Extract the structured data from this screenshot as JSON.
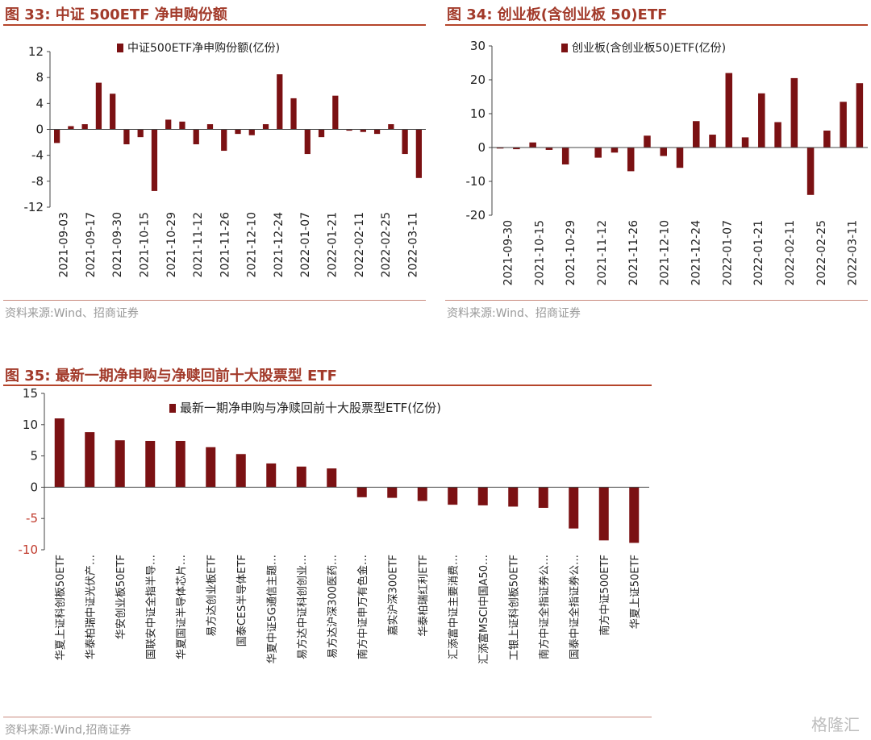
{
  "fig33": {
    "title": "图 33:  中证 500ETF 净申购份额",
    "source": "资料来源:Wind、招商证券"
  },
  "fig34": {
    "title": "图 34:  创业板(含创业板 50)ETF",
    "source": "资料来源:Wind、招商证券"
  },
  "fig35": {
    "title": "图 35:  最新一期净申购与净赎回前十大股票型 ETF",
    "source": "资料来源:Wind,招商证券"
  },
  "watermark": "格隆汇",
  "colors": {
    "bar": "#7b1113",
    "title": "#a23a2a",
    "rule": "#b5452b",
    "axis_red": "#c0392b"
  },
  "chart_data": [
    {
      "id": "fig33",
      "type": "bar",
      "legend": "中证500ETF净申购份额(亿份)",
      "ylim": [
        -12,
        12
      ],
      "yticks": [
        12,
        8,
        4,
        0,
        -4,
        -8,
        -12
      ],
      "tick_labels": [
        "2021-09-03",
        "2021-09-17",
        "2021-09-30",
        "2021-10-15",
        "2021-10-29",
        "2021-11-12",
        "2021-11-26",
        "2021-12-10",
        "2021-12-24",
        "2022-01-07",
        "2022-01-21",
        "2022-02-11",
        "2022-02-25",
        "2022-03-11"
      ],
      "values": [
        -2.1,
        0.5,
        0.8,
        7.2,
        5.5,
        -2.3,
        -1.2,
        -9.5,
        1.5,
        1.2,
        -2.3,
        0.8,
        -3.3,
        -0.7,
        -0.9,
        0.8,
        8.5,
        4.8,
        -3.8,
        -1.2,
        5.2,
        -0.2,
        -0.4,
        -0.7,
        0.8,
        -3.8,
        -7.5
      ]
    },
    {
      "id": "fig34",
      "type": "bar",
      "legend": "创业板(含创业板50)ETF(亿份)",
      "ylim": [
        -20,
        30
      ],
      "yticks": [
        30,
        20,
        10,
        0,
        -10,
        -20
      ],
      "tick_labels": [
        "2021-09-30",
        "2021-10-15",
        "2021-10-29",
        "2021-11-12",
        "2021-11-26",
        "2021-12-10",
        "2021-12-24",
        "2022-01-07",
        "2022-01-21",
        "2022-02-11",
        "2022-02-25",
        "2022-03-11"
      ],
      "values": [
        -0.3,
        -0.5,
        1.5,
        -0.7,
        -5.0,
        0.1,
        -3.0,
        -1.5,
        -7.0,
        3.5,
        -2.5,
        -6.0,
        7.8,
        3.8,
        22.0,
        3.0,
        16.0,
        7.5,
        20.5,
        -14.0,
        5.0,
        13.5,
        19.0
      ]
    },
    {
      "id": "fig35",
      "type": "bar",
      "legend": "最新一期净申购与净赎回前十大股票型ETF(亿份)",
      "ylim": [
        -10,
        15
      ],
      "yticks": [
        15,
        10,
        5,
        0,
        -5,
        -10
      ],
      "categories": [
        "华夏上证科创板50ETF",
        "华泰柏瑞中证光伏产…",
        "华安创业板50ETF",
        "国联安中证全指半导…",
        "华夏国证半导体芯片…",
        "易方达创业板ETF",
        "国泰CES半导体ETF",
        "华夏中证5G通信主题…",
        "易方达中证科创创业…",
        "易方达沪深300医药…",
        "南方中证申万有色金…",
        "嘉实沪深300ETF",
        "华泰柏瑞红利ETF",
        "汇添富中证主要消费…",
        "汇添富MSCI中国A50…",
        "工银上证科创板50ETF",
        "南方中证全指证券公…",
        "国泰中证全指证券公…",
        "南方中证500ETF",
        "华夏上证50ETF"
      ],
      "values": [
        11.0,
        8.8,
        7.5,
        7.4,
        7.4,
        6.4,
        5.3,
        3.8,
        3.3,
        3.0,
        -1.6,
        -1.7,
        -2.2,
        -2.8,
        -2.9,
        -3.1,
        -3.3,
        -6.6,
        -8.5,
        -8.9
      ]
    }
  ]
}
